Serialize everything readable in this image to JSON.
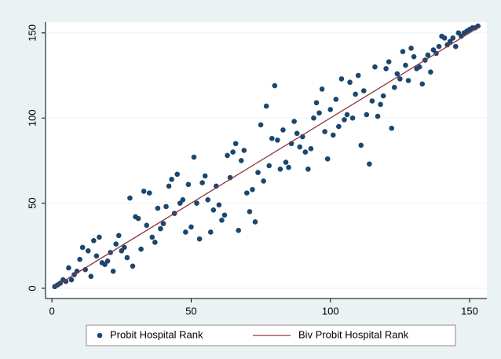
{
  "chart_data": {
    "type": "scatter",
    "series": [
      {
        "name": "Probit Hospital Rank",
        "type": "scatter",
        "color": "#1a476f",
        "x": [
          1,
          2,
          3,
          4,
          5,
          6,
          7,
          8,
          9,
          10,
          11,
          12,
          13,
          14,
          15,
          16,
          17,
          18,
          19,
          20,
          21,
          22,
          23,
          24,
          25,
          26,
          27,
          28,
          29,
          30,
          31,
          32,
          33,
          34,
          35,
          36,
          37,
          38,
          39,
          40,
          41,
          42,
          43,
          44,
          45,
          46,
          47,
          48,
          49,
          50,
          51,
          52,
          53,
          54,
          55,
          56,
          57,
          58,
          59,
          60,
          61,
          62,
          63,
          64,
          65,
          66,
          67,
          68,
          69,
          70,
          71,
          72,
          73,
          74,
          75,
          76,
          77,
          78,
          79,
          80,
          81,
          82,
          83,
          84,
          85,
          86,
          87,
          88,
          89,
          90,
          91,
          92,
          93,
          94,
          95,
          96,
          97,
          98,
          99,
          100,
          101,
          102,
          103,
          104,
          105,
          106,
          107,
          108,
          109,
          110,
          111,
          112,
          113,
          114,
          115,
          116,
          117,
          118,
          119,
          120,
          121,
          122,
          123,
          124,
          125,
          126,
          127,
          128,
          129,
          130,
          131,
          132,
          133,
          134,
          135,
          136,
          137,
          138,
          139,
          140,
          141,
          142,
          143,
          144,
          145,
          146,
          147,
          148,
          149,
          150,
          151,
          152,
          153
        ],
        "y": [
          1,
          2,
          3,
          5,
          4,
          12,
          5,
          8,
          10,
          17,
          24,
          11,
          22,
          7,
          28,
          19,
          30,
          15,
          14,
          16,
          21,
          10,
          26,
          31,
          22,
          24,
          18,
          53,
          13,
          42,
          41,
          23,
          57,
          37,
          56,
          30,
          27,
          47,
          35,
          38,
          48,
          60,
          64,
          44,
          67,
          50,
          52,
          33,
          61,
          36,
          77,
          50,
          29,
          62,
          66,
          52,
          33,
          46,
          60,
          49,
          40,
          43,
          78,
          65,
          80,
          85,
          34,
          75,
          81,
          56,
          45,
          58,
          39,
          68,
          96,
          63,
          107,
          72,
          88,
          119,
          87,
          70,
          93,
          74,
          71,
          85,
          98,
          91,
          83,
          89,
          80,
          70,
          82,
          100,
          109,
          103,
          117,
          92,
          76,
          105,
          90,
          111,
          95,
          123,
          99,
          102,
          121,
          100,
          114,
          125,
          84,
          116,
          102,
          73,
          110,
          130,
          101,
          108,
          113,
          129,
          133,
          94,
          118,
          126,
          123,
          139,
          131,
          122,
          141,
          136,
          129,
          130,
          120,
          134,
          137,
          127,
          140,
          138,
          142,
          148,
          147,
          143,
          145,
          147,
          142,
          150,
          148,
          150,
          151,
          152,
          153,
          153,
          154
        ]
      },
      {
        "name": "Biv Probit Hospital Rank",
        "type": "line",
        "color": "#90353b",
        "x": [
          1,
          154
        ],
        "y": [
          1,
          154
        ]
      }
    ],
    "xlim": [
      -2.3,
      156.2
    ],
    "ylim": [
      -6,
      156.4
    ],
    "xticks": [
      0,
      50,
      100,
      150
    ],
    "yticks": [
      0,
      50,
      100,
      150
    ],
    "grid": true,
    "legend": "bottom"
  }
}
